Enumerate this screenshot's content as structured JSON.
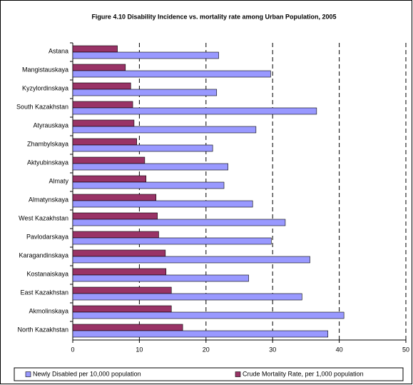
{
  "chart_data": {
    "type": "hbar",
    "title": "Figure 4.10 Disability Incidence vs.  mortality rate among Urban Population, 2005",
    "categories": [
      "Astana",
      "Mangistauskaya",
      "Kyzylordinskaya",
      "South Kazakhstan",
      "Atyrauskaya",
      "Zhambylskaya",
      "Aktyubinskaya",
      "Almaty",
      "Almatynskaya",
      "West Kazakhstan",
      "Pavlodarskaya",
      "Karagandinskaya",
      "Kostanaiskaya",
      "East Kazakhstan",
      "Akmolinskaya",
      "North Kazakhstan"
    ],
    "series": [
      {
        "name": "Newly Disabled per 10,000 population",
        "color": "#9999ff",
        "values": [
          21.9,
          29.7,
          21.6,
          36.6,
          27.5,
          21.0,
          23.3,
          22.7,
          27.0,
          31.9,
          29.8,
          35.6,
          26.4,
          34.4,
          40.7,
          38.3
        ]
      },
      {
        "name": "Crude Mortality Rate, per 1,000 population",
        "color": "#993366",
        "values": [
          6.7,
          7.9,
          8.7,
          9.0,
          9.2,
          9.6,
          10.8,
          11.0,
          12.5,
          12.7,
          12.9,
          13.9,
          14.0,
          14.8,
          14.8,
          16.5
        ]
      }
    ],
    "xlim": [
      0,
      50
    ],
    "xticks": [
      0,
      10,
      20,
      30,
      40,
      50
    ],
    "grid": true,
    "legend": "bottom"
  }
}
